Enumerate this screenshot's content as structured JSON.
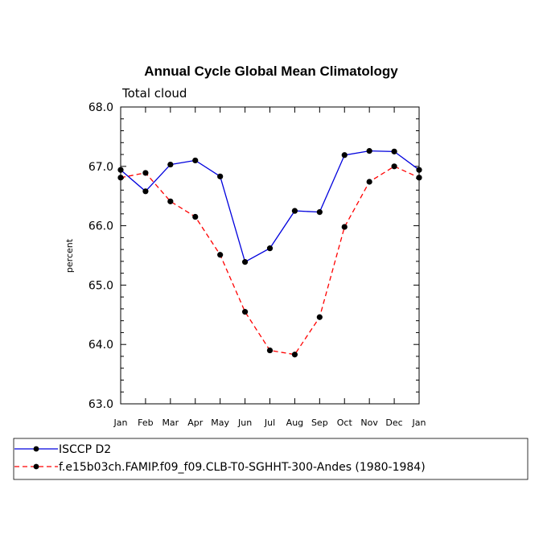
{
  "chart_data": {
    "type": "line",
    "title": "Annual Cycle Global Mean Climatology",
    "subtitle": "Total cloud",
    "xlabel": "",
    "ylabel": "percent",
    "categories": [
      "Jan",
      "Feb",
      "Mar",
      "Apr",
      "May",
      "Jun",
      "Jul",
      "Aug",
      "Sep",
      "Oct",
      "Nov",
      "Dec",
      "Jan"
    ],
    "ylim": [
      63.0,
      68.0
    ],
    "yticks": [
      "63.0",
      "64.0",
      "65.0",
      "66.0",
      "67.0",
      "68.0"
    ],
    "legend_position": "bottom",
    "series": [
      {
        "name": "ISCCP D2",
        "color": "#0000dd",
        "line_style": "solid",
        "values": [
          66.94,
          66.58,
          67.03,
          67.1,
          66.83,
          65.39,
          65.62,
          66.25,
          66.23,
          67.19,
          67.26,
          67.25,
          66.94
        ]
      },
      {
        "name": "f.e15b03ch.FAMIP.f09_f09.CLB-T0-SGHHT-300-Andes (1980-1984)",
        "color": "#ff0000",
        "line_style": "dashed",
        "values": [
          66.81,
          66.89,
          66.41,
          66.15,
          65.51,
          64.55,
          63.9,
          63.83,
          64.46,
          65.98,
          66.74,
          67.0,
          66.81
        ]
      }
    ]
  }
}
